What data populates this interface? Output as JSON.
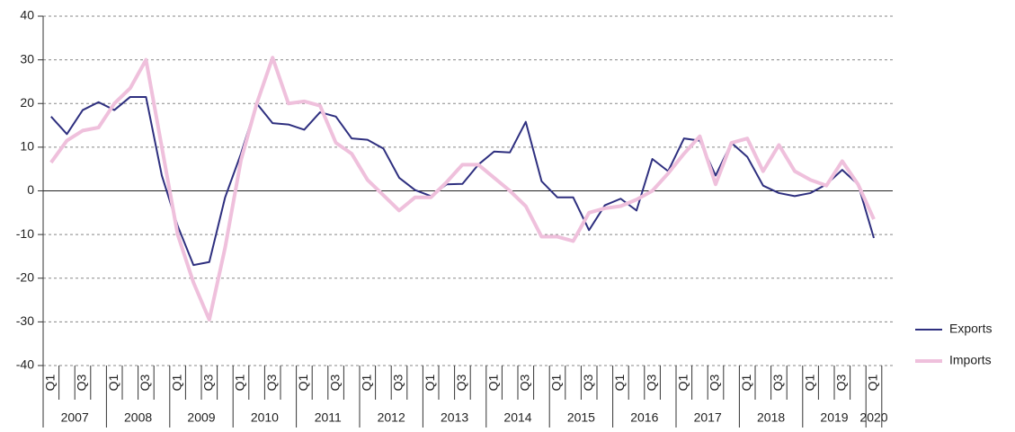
{
  "chart_data": {
    "type": "line",
    "categories": [
      "Q1",
      null,
      "Q3",
      null,
      "Q1",
      null,
      "Q3",
      null,
      "Q1",
      null,
      "Q3",
      null,
      "Q1",
      null,
      "Q3",
      null,
      "Q1",
      null,
      "Q3",
      null,
      "Q1",
      null,
      "Q3",
      null,
      "Q1",
      null,
      "Q3",
      null,
      "Q1",
      null,
      "Q3",
      null,
      "Q1",
      null,
      "Q3",
      null,
      "Q1",
      null,
      "Q3",
      null,
      "Q1",
      null,
      "Q3",
      null,
      "Q1",
      null,
      "Q3",
      null,
      "Q1",
      null,
      "Q3",
      null,
      "Q1"
    ],
    "years": [
      "2007",
      "2008",
      "2009",
      "2010",
      "2011",
      "2012",
      "2013",
      "2014",
      "2015",
      "2016",
      "2017",
      "2018",
      "2019",
      "2020"
    ],
    "series": [
      {
        "name": "Exports",
        "color": "#2e2f7f",
        "values": [
          17,
          13,
          18.5,
          20.3,
          18.5,
          21.5,
          21.5,
          3.5,
          -8,
          -17,
          -16.3,
          -1.5,
          8.5,
          20,
          15.5,
          15.2,
          14,
          18,
          17,
          12,
          11.7,
          9.7,
          3,
          0.2,
          -1.2,
          1.5,
          1.6,
          6,
          9,
          8.8,
          15.8,
          2.2,
          -1.5,
          -1.5,
          -9,
          -3.3,
          -1.8,
          -4.5,
          7.3,
          4.5,
          12,
          11.5,
          3.5,
          11,
          7.8,
          1.2,
          -0.5,
          -1.2,
          -0.5,
          1.5,
          4.8,
          1.5,
          -10.8
        ]
      },
      {
        "name": "Imports",
        "color": "#efc0dc",
        "values": [
          6.5,
          11.5,
          13.8,
          14.5,
          20,
          23.5,
          30,
          10,
          -10,
          -21,
          -29.5,
          -13,
          7,
          20,
          30.5,
          20,
          20.5,
          19.5,
          11,
          8.5,
          2.5,
          -1,
          -4.5,
          -1.5,
          -1.5,
          2,
          6,
          6,
          3,
          0,
          -3.5,
          -10.5,
          -10.5,
          -11.5,
          -5,
          -4,
          -3.5,
          -2,
          0,
          4,
          8.5,
          12.5,
          1.5,
          11,
          12,
          4.5,
          10.5,
          4.5,
          2.5,
          1.2,
          6.8,
          1.5,
          -6.5
        ]
      }
    ],
    "ylim": [
      -40,
      40
    ],
    "yticks": [
      -40,
      -30,
      -20,
      -10,
      0,
      10,
      20,
      30,
      40
    ],
    "grid": true,
    "legend": "right"
  }
}
